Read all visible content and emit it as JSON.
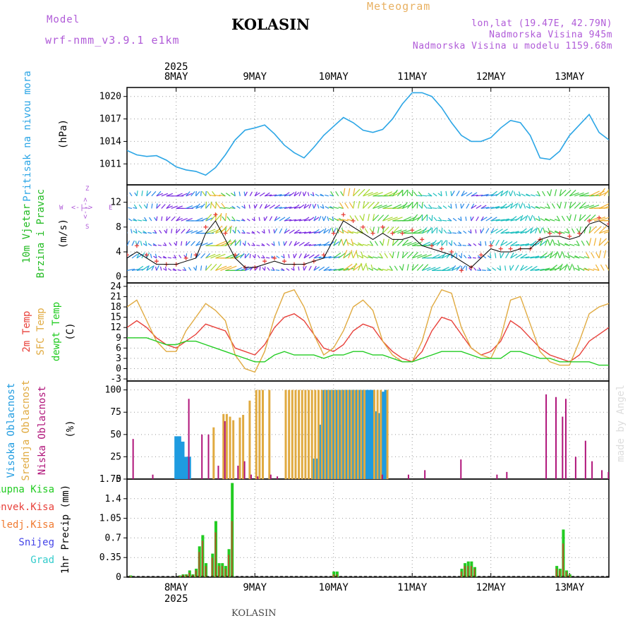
{
  "header": {
    "model_label": "Model",
    "model_version": "wrf-nmm_v3.9.1 e1km",
    "station": "KOLASIN",
    "product": "Meteogram",
    "coords": "lon,lat (19.47E, 42.79N)",
    "elevation": "Nadmorska Visina 945m",
    "model_elevation": "Nadmorska Visina u modelu 1159.68m"
  },
  "footer": {
    "station": "KOLASIN"
  },
  "watermark": "made by Angel",
  "time_axis": {
    "year": "2025",
    "day_labels": [
      "8MAY",
      "9MAY",
      "10MAY",
      "11MAY",
      "12MAY",
      "13MAY"
    ],
    "day_positions_hours": [
      0,
      24,
      48,
      72,
      96,
      120
    ],
    "range_hours": [
      -15,
      132
    ]
  },
  "colors": {
    "pressure": "#2ca6e6",
    "wind_label": "#22bb22",
    "temp2m": "#e8403a",
    "sfc_temp": "#e0aa40",
    "dewpoint": "#22cc22",
    "cloud_high": "#1e9be0",
    "cloud_mid": "#e0aa40",
    "cloud_low": "#b0147a",
    "precip_total": "#22cc22",
    "precip_conv": "#e8403a",
    "precip_frz": "#f07a30",
    "snow": "#4444e8",
    "hail": "#33cccc",
    "direction_label": "#b05bd8"
  },
  "chart_data": [
    {
      "type": "line",
      "panel": "pressure",
      "ylabel": "(hPa)",
      "side_labels": [
        "Pritisak na nivou mora"
      ],
      "yticks": [
        1011,
        1014,
        1017,
        1020
      ],
      "ylim": [
        1008.2,
        1021.2
      ],
      "grid": true,
      "x_hours": [
        -15,
        -12,
        -9,
        -6,
        -3,
        0,
        3,
        6,
        9,
        12,
        15,
        18,
        21,
        24,
        27,
        30,
        33,
        36,
        39,
        42,
        45,
        48,
        51,
        54,
        57,
        60,
        63,
        66,
        69,
        72,
        75,
        78,
        81,
        84,
        87,
        90,
        93,
        96,
        99,
        102,
        105,
        108,
        111,
        114,
        117,
        120,
        123,
        126,
        129,
        132
      ],
      "values": [
        1012.8,
        1012.2,
        1012.0,
        1012.1,
        1011.5,
        1010.6,
        1010.2,
        1010.0,
        1009.5,
        1010.5,
        1012.2,
        1014.2,
        1015.5,
        1015.8,
        1016.2,
        1015.0,
        1013.5,
        1012.5,
        1011.8,
        1013.2,
        1014.8,
        1016.0,
        1017.2,
        1016.5,
        1015.5,
        1015.2,
        1015.6,
        1017.0,
        1019.0,
        1020.5,
        1020.5,
        1020.0,
        1018.5,
        1016.5,
        1014.8,
        1014.0,
        1014.0,
        1014.5,
        1015.8,
        1016.8,
        1016.5,
        1014.8,
        1011.8,
        1011.6,
        1012.7,
        1014.8,
        1016.2,
        1017.6,
        1015.2,
        1014.2
      ]
    },
    {
      "type": "scatter",
      "panel": "wind",
      "ylabel": "(m/s)",
      "side_labels": [
        "10m Vjetar",
        "Brzina i Pravac"
      ],
      "direction_labels": {
        "w": "W",
        "e": "E",
        "n": "Z",
        "s": "S",
        "rose": "<-|->"
      },
      "yticks": [
        0,
        4,
        8,
        12
      ],
      "ylim": [
        -1,
        14.8
      ],
      "grid": true,
      "x_hours": [
        -15,
        -12,
        -9,
        -6,
        -3,
        0,
        3,
        6,
        9,
        12,
        15,
        18,
        21,
        24,
        27,
        30,
        33,
        36,
        39,
        42,
        45,
        48,
        51,
        54,
        57,
        60,
        63,
        66,
        69,
        72,
        75,
        78,
        81,
        84,
        87,
        90,
        93,
        96,
        99,
        102,
        105,
        108,
        111,
        114,
        117,
        120,
        123,
        126,
        129,
        132
      ],
      "speed": [
        3.0,
        4.0,
        3.0,
        2.0,
        2.0,
        2.0,
        2.5,
        3.0,
        7.0,
        9.0,
        6.0,
        3.0,
        1.5,
        1.5,
        2.0,
        2.5,
        2.0,
        2.0,
        2.0,
        2.5,
        3.0,
        6.0,
        9.0,
        8.0,
        7.0,
        6.0,
        7.0,
        6.0,
        6.0,
        6.5,
        5.0,
        4.5,
        4.0,
        3.5,
        2.5,
        1.5,
        3.0,
        4.5,
        4.0,
        4.0,
        4.5,
        4.5,
        6.0,
        6.5,
        6.5,
        6.0,
        6.5,
        8.5,
        9.0,
        8.0
      ],
      "gust": [
        3.5,
        5.0,
        3.5,
        2.5,
        2.0,
        2.0,
        3.0,
        3.5,
        8.0,
        10.0,
        7.0,
        3.5,
        1.5,
        1.5,
        2.5,
        3.0,
        2.5,
        2.0,
        2.0,
        2.5,
        3.5,
        7.0,
        10.0,
        9.0,
        8.0,
        7.0,
        8.0,
        7.0,
        7.0,
        7.5,
        6.0,
        5.0,
        4.5,
        4.0,
        1.0,
        1.5,
        3.5,
        5.0,
        4.5,
        4.5,
        4.5,
        4.5,
        6.0,
        7.0,
        7.0,
        6.5,
        7.0,
        9.0,
        9.5,
        8.5
      ]
    },
    {
      "type": "line",
      "panel": "temperature",
      "ylabel": "(C)",
      "side_labels": [
        "2m Temp",
        "SFC Temp",
        "dewpt Temp"
      ],
      "yticks": [
        -3,
        0,
        3,
        6,
        9,
        12,
        15,
        18,
        21,
        24
      ],
      "ylim": [
        -3.6,
        25
      ],
      "grid": true,
      "x_hours": [
        -15,
        -12,
        -9,
        -6,
        -3,
        0,
        3,
        6,
        9,
        12,
        15,
        18,
        21,
        24,
        27,
        30,
        33,
        36,
        39,
        42,
        45,
        48,
        51,
        54,
        57,
        60,
        63,
        66,
        69,
        72,
        75,
        78,
        81,
        84,
        87,
        90,
        93,
        96,
        99,
        102,
        105,
        108,
        111,
        114,
        117,
        120,
        123,
        126,
        129,
        132
      ],
      "series": [
        {
          "name": "2m Temp",
          "color": "#e8403a",
          "values": [
            12,
            14,
            12,
            9,
            7,
            6,
            8,
            10,
            13,
            12,
            11,
            6,
            5,
            4,
            7,
            12,
            15,
            16,
            14,
            10,
            6,
            5,
            7,
            11,
            13,
            12,
            8,
            5,
            3,
            2,
            5,
            11,
            15,
            14,
            10,
            6,
            4,
            5,
            8,
            14,
            12,
            9,
            6,
            4,
            3,
            2,
            4,
            8,
            10,
            12
          ]
        },
        {
          "name": "SFC Temp",
          "color": "#e0aa40",
          "values": [
            18,
            20,
            14,
            8,
            5,
            5,
            11,
            15,
            19,
            17,
            14,
            4,
            0,
            -1,
            5,
            15,
            22,
            23,
            18,
            10,
            4,
            6,
            11,
            18,
            20,
            17,
            8,
            4,
            2,
            2,
            8,
            18,
            23,
            22,
            12,
            6,
            4,
            3,
            9,
            20,
            21,
            13,
            5,
            2,
            1,
            1,
            8,
            16,
            18,
            19
          ]
        },
        {
          "name": "dewpt Temp",
          "color": "#22cc22",
          "values": [
            9,
            9,
            9,
            8,
            7,
            7,
            8,
            8,
            7,
            6,
            5,
            4,
            3,
            2,
            2,
            4,
            5,
            4,
            4,
            4,
            3,
            4,
            4,
            5,
            5,
            4,
            4,
            3,
            2,
            2,
            3,
            4,
            5,
            5,
            5,
            4,
            3,
            3,
            3,
            5,
            5,
            4,
            3,
            3,
            2,
            2,
            2,
            2,
            1,
            1
          ]
        }
      ]
    },
    {
      "type": "bar",
      "panel": "cloud",
      "ylabel": "(%)",
      "side_labels": [
        "Visoka Oblacnost",
        "Srednja Oblacnost",
        "Niska Oblacnost"
      ],
      "yticks": [
        0,
        25,
        50,
        75,
        100
      ],
      "ylim": [
        0,
        110
      ],
      "grid": true,
      "series": [
        {
          "name": "Visoka Oblacnost",
          "color": "#1e9be0",
          "x_hours": [
            0,
            1,
            2,
            3,
            4,
            42,
            43,
            44,
            45,
            46,
            47,
            48,
            49,
            50,
            51,
            52,
            53,
            54,
            55,
            56,
            57,
            58,
            59,
            60,
            61,
            62,
            63,
            64
          ],
          "values": [
            48,
            48,
            42,
            25,
            25,
            23,
            23,
            61,
            100,
            100,
            100,
            100,
            100,
            100,
            100,
            100,
            100,
            100,
            100,
            100,
            100,
            100,
            100,
            100,
            76,
            74,
            98,
            100
          ]
        },
        {
          "name": "Srednja Oblacnost",
          "color": "#e0aa40",
          "x_hours": [
            11,
            14,
            15,
            16,
            17,
            19,
            20,
            22,
            24,
            25,
            26,
            28,
            33,
            34,
            35,
            36,
            37,
            38,
            39,
            40,
            41,
            42,
            43,
            44,
            45,
            46,
            47,
            48,
            49,
            50,
            51,
            52,
            53,
            54,
            55,
            56,
            57,
            60,
            61,
            62,
            64
          ],
          "values": [
            58,
            73,
            73,
            70,
            66,
            69,
            72,
            88,
            100,
            100,
            100,
            100,
            100,
            100,
            100,
            100,
            100,
            100,
            100,
            100,
            100,
            100,
            100,
            100,
            100,
            100,
            100,
            100,
            100,
            100,
            100,
            100,
            100,
            100,
            100,
            100,
            100,
            100,
            100,
            100,
            100
          ]
        },
        {
          "name": "Niska Oblacnost",
          "color": "#b0147a",
          "x_hours": [
            -14,
            -8,
            3,
            7,
            9,
            12,
            14,
            18,
            20,
            22,
            24,
            28,
            30,
            62,
            70,
            75,
            86,
            97,
            100,
            112,
            115,
            117,
            118,
            121,
            124,
            126,
            129,
            131
          ],
          "values": [
            45,
            5,
            90,
            50,
            50,
            15,
            65,
            15,
            20,
            5,
            3,
            5,
            3,
            5,
            5,
            10,
            22,
            5,
            8,
            95,
            92,
            70,
            90,
            25,
            43,
            20,
            10,
            8
          ]
        }
      ]
    },
    {
      "type": "bar",
      "panel": "precipitation",
      "ylabel": "1hr Precip (mm)",
      "side_labels": [
        "Ukupna Kisa",
        "Konvek.Kisa",
        "Zaledj.Kisa",
        "Snijeg",
        "Grad"
      ],
      "yticks": [
        0,
        0.35,
        0.7,
        1.05,
        1.4,
        1.75
      ],
      "ylim": [
        0,
        1.75
      ],
      "grid": true,
      "x_hours": [
        -14,
        1,
        2,
        3,
        4,
        5,
        6,
        7,
        8,
        9,
        11,
        12,
        13,
        14,
        15,
        16,
        17,
        48,
        49,
        87,
        88,
        89,
        90,
        91,
        116,
        117,
        118,
        119,
        120
      ],
      "total": [
        0.03,
        0.03,
        0.05,
        0.05,
        0.12,
        0.05,
        0.15,
        0.55,
        0.75,
        0.25,
        0.42,
        1.0,
        0.25,
        0.25,
        0.2,
        0.5,
        1.68,
        0.1,
        0.1,
        0.15,
        0.25,
        0.28,
        0.28,
        0.18,
        0.2,
        0.15,
        0.85,
        0.12,
        0.05
      ],
      "convective": [
        0.02,
        0.02,
        0.04,
        0.04,
        0.08,
        0.04,
        0.12,
        0.45,
        0.65,
        0.2,
        0.35,
        0.8,
        0.2,
        0.2,
        0.15,
        0.4,
        1.0,
        0.05,
        0.05,
        0.1,
        0.2,
        0.2,
        0.2,
        0.15,
        0.15,
        0.12,
        0.6,
        0.1,
        0.04
      ]
    }
  ]
}
